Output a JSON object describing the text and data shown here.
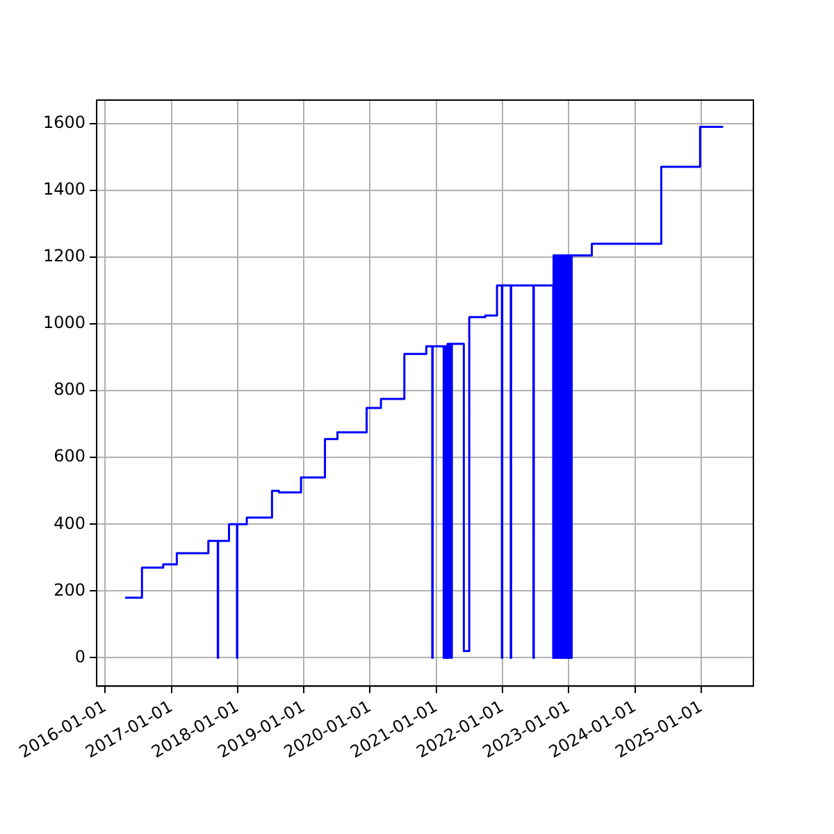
{
  "chart_data": {
    "type": "step",
    "color": "#0000ff",
    "marker": "none",
    "line_style": "solid",
    "grid": true,
    "legend": false,
    "x": [
      "2016-04-20",
      "2016-07-22",
      "2016-11-16",
      "2017-01-30",
      "2017-07-23",
      "2017-09-13",
      "2017-09-15",
      "2017-11-14",
      "2017-12-28",
      "2017-12-30",
      "2018-02-20",
      "2018-07-09",
      "2018-08-17",
      "2018-12-16",
      "2019-04-27",
      "2019-07-05",
      "2019-12-13",
      "2020-03-01",
      "2020-07-08",
      "2020-11-06",
      "2020-12-09",
      "2020-12-11",
      "2021-02-10",
      "2021-02-12",
      "2021-02-20",
      "2021-02-22",
      "2021-03-01",
      "2021-03-03",
      "2021-03-12",
      "2021-03-14",
      "2021-03-25",
      "2021-03-27",
      "2021-06-01",
      "2021-07-01",
      "2021-09-27",
      "2021-12-01",
      "2021-12-28",
      "2021-12-30",
      "2022-02-15",
      "2022-02-17",
      "2022-06-20",
      "2022-06-22",
      "2022-10-07",
      "2022-10-09",
      "2022-10-17",
      "2022-10-19",
      "2022-10-27",
      "2022-10-29",
      "2022-11-06",
      "2022-11-08",
      "2022-11-16",
      "2022-11-18",
      "2022-11-26",
      "2022-11-28",
      "2022-12-06",
      "2022-12-08",
      "2022-12-16",
      "2022-12-18",
      "2022-12-26",
      "2022-12-28",
      "2023-01-05",
      "2023-01-07",
      "2023-01-15",
      "2023-01-17",
      "2023-01-22",
      "2023-05-08",
      "2024-05-25",
      "2024-12-25",
      "2025-05-01"
    ],
    "values": [
      180,
      270,
      280,
      313,
      350,
      0,
      350,
      400,
      0,
      400,
      420,
      500,
      495,
      540,
      655,
      675,
      748,
      775,
      910,
      933,
      0,
      933,
      0,
      933,
      0,
      933,
      0,
      940,
      0,
      940,
      0,
      940,
      20,
      1020,
      1025,
      1115,
      0,
      1115,
      0,
      1115,
      0,
      1115,
      0,
      1205,
      0,
      1205,
      0,
      1205,
      0,
      1205,
      0,
      1205,
      0,
      1205,
      0,
      1205,
      0,
      1205,
      0,
      1205,
      0,
      1205,
      0,
      1205,
      1205,
      1240,
      1470,
      1590,
      1590
    ],
    "xlim": [
      "2015-11-15",
      "2025-10-15"
    ],
    "xticks": [
      "2016-01-01",
      "2017-01-01",
      "2018-01-01",
      "2019-01-01",
      "2020-01-01",
      "2021-01-01",
      "2022-01-01",
      "2023-01-01",
      "2024-01-01",
      "2025-01-01"
    ],
    "ylim": [
      -85,
      1670
    ],
    "yticks": [
      0,
      200,
      400,
      600,
      800,
      1000,
      1200,
      1400,
      1600
    ]
  }
}
